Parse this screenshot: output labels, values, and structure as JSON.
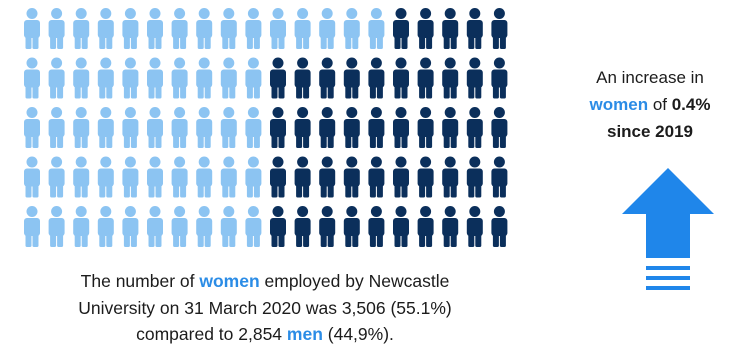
{
  "colors": {
    "women": "#8cc4f2",
    "men": "#0b2f5b",
    "highlight": "#2b8ce6",
    "arrow": "#1f86ea"
  },
  "chart_data": {
    "type": "pictogram",
    "rows": 5,
    "cols": 20,
    "series": [
      {
        "name": "women",
        "count": 3506,
        "percent": 55.1
      },
      {
        "name": "men",
        "count": 2854,
        "percent": 44.9
      }
    ],
    "grid_layout": {
      "women_per_row": [
        15,
        10,
        10,
        10,
        10
      ],
      "men_per_row": [
        5,
        10,
        10,
        10,
        10
      ]
    }
  },
  "caption": {
    "line1_pre": "The number of ",
    "women_word": "women",
    "line1_post": " employed by Newcastle",
    "line2": "University on 31 March 2020 was 3,506 (55.1%)",
    "line3_pre": "compared to 2,854 ",
    "men_word": "men",
    "line3_post": " (44,9%)."
  },
  "callout": {
    "line1": "An increase in",
    "women_word": "women",
    "line2_mid": " of ",
    "line2_value": "0.4%",
    "line3": "since 2019"
  },
  "arrow": {
    "icon": "up-arrow-icon",
    "direction": "up"
  }
}
